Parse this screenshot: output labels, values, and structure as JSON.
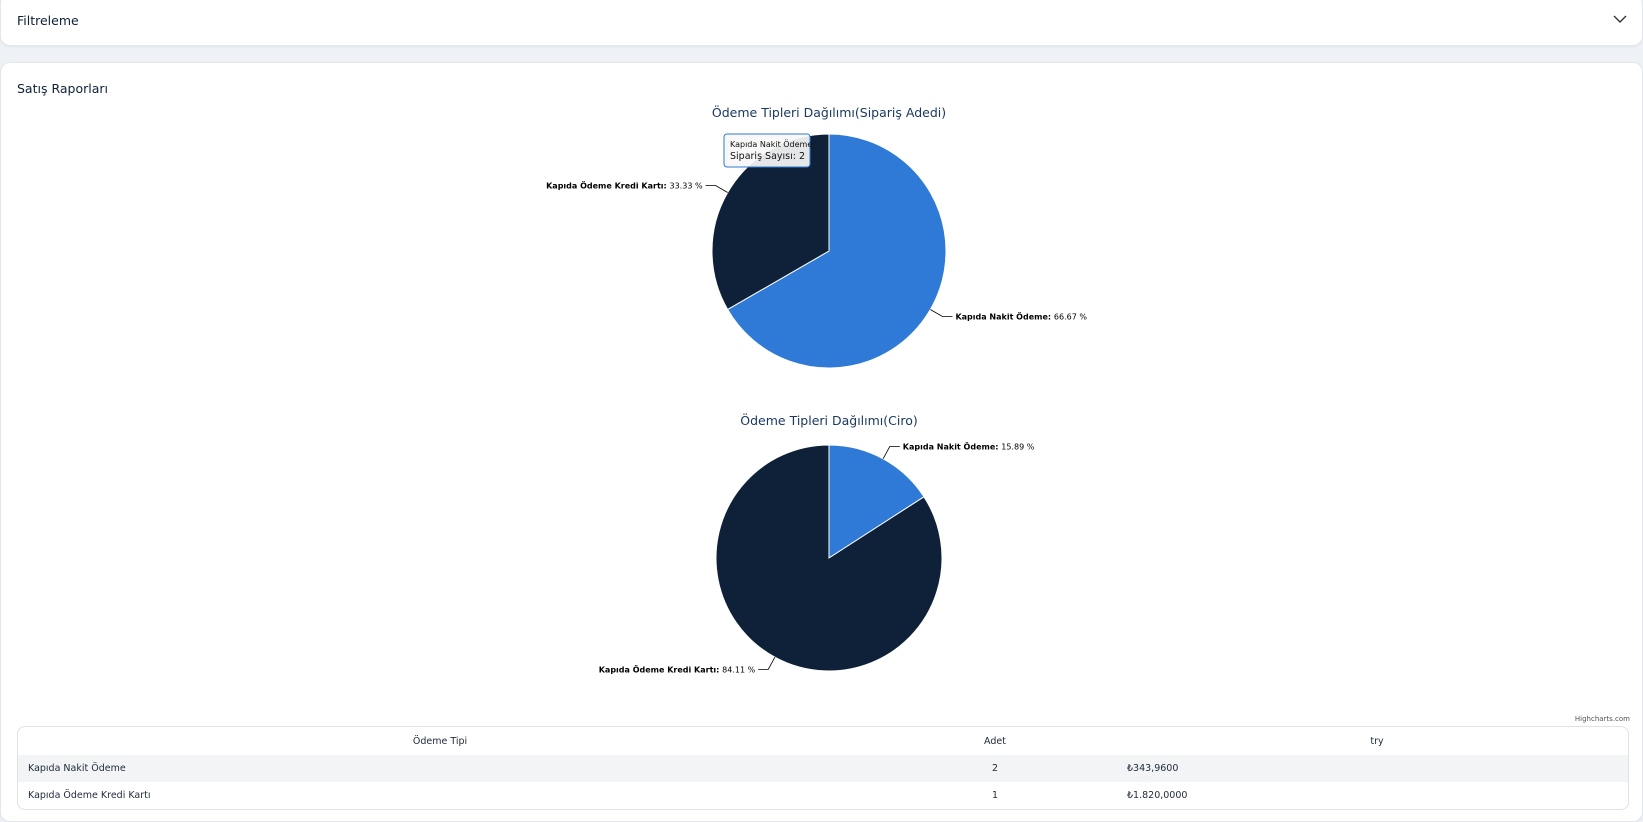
{
  "filter": {
    "title": "Filtreleme"
  },
  "report": {
    "title": "Satış Raporları"
  },
  "chart_data": [
    {
      "type": "pie",
      "title": "Ödeme Tipleri Dağılımı(Sipariş Adedi)",
      "slices": [
        {
          "name": "Kapıda Nakit Ödeme",
          "value": 66.67,
          "label": "66.67 %",
          "color": "#2f7ad6"
        },
        {
          "name": "Kapıda Ödeme Kredi Kartı",
          "value": 33.33,
          "label": "33.33 %",
          "color": "#0e2139"
        }
      ],
      "tooltip": {
        "name": "Kapıda Nakit Ödeme",
        "text": "Sipariş Sayısı: 2"
      }
    },
    {
      "type": "pie",
      "title": "Ödeme Tipleri Dağılımı(Ciro)",
      "slices": [
        {
          "name": "Kapıda Nakit Ödeme",
          "value": 15.89,
          "label": "15.89 %",
          "color": "#2f7ad6"
        },
        {
          "name": "Kapıda Ödeme Kredi Kartı",
          "value": 84.11,
          "label": "84.11 %",
          "color": "#0e2139"
        }
      ]
    }
  ],
  "credits": "Highcharts.com",
  "table": {
    "headers": [
      "Ödeme Tipi",
      "Adet",
      "try"
    ],
    "rows": [
      [
        "Kapıda Nakit Ödeme",
        "2",
        "₺343,9600"
      ],
      [
        "Kapıda Ödeme Kredi Kartı",
        "1",
        "₺1.820,0000"
      ]
    ]
  }
}
